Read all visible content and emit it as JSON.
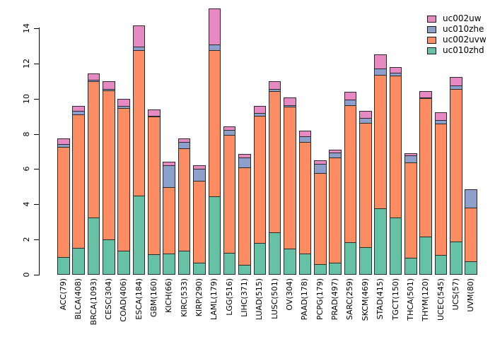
{
  "chart_data": {
    "type": "bar",
    "stacked": true,
    "title": "",
    "xlabel": "",
    "ylabel": "",
    "ylim": [
      0,
      14
    ],
    "yticks": [
      0,
      2,
      4,
      6,
      8,
      10,
      12,
      14
    ],
    "grid": false,
    "legend_position": "top-right",
    "categories": [
      "ACC(79)",
      "BLCA(408)",
      "BRCA(1093)",
      "CESC(304)",
      "COAD(406)",
      "ESCA(184)",
      "GBM(160)",
      "KICH(66)",
      "KIRC(533)",
      "KIRP(290)",
      "LAML(179)",
      "LGG(516)",
      "LIHC(371)",
      "LUAD(515)",
      "LUSC(501)",
      "OV(304)",
      "PAAD(178)",
      "PCPG(179)",
      "PRAD(497)",
      "SARC(259)",
      "SKCM(469)",
      "STAD(415)",
      "TGCT(150)",
      "THCA(501)",
      "THYM(120)",
      "UCEC(545)",
      "UCS(57)",
      "UVM(80)"
    ],
    "series": [
      {
        "name": "uc010zhd",
        "color": "#66c2a5",
        "stack_order": "bottom",
        "values": [
          1.05,
          1.55,
          3.3,
          2.05,
          1.4,
          4.55,
          1.22,
          1.25,
          1.4,
          0.72,
          4.48,
          1.3,
          0.6,
          1.86,
          2.44,
          1.53,
          1.26,
          0.66,
          0.72,
          1.9,
          1.62,
          3.8,
          3.27,
          0.99,
          2.2,
          1.15,
          1.93,
          0.79
        ]
      },
      {
        "name": "uc002uvw",
        "color": "#fc8d62",
        "stack_order": "second",
        "values": [
          6.25,
          7.6,
          7.72,
          8.45,
          8.1,
          8.25,
          7.8,
          3.75,
          5.81,
          4.65,
          8.3,
          6.7,
          5.55,
          7.2,
          8.04,
          8.06,
          6.34,
          5.16,
          5.97,
          7.78,
          7.06,
          7.6,
          8.1,
          5.43,
          7.85,
          7.46,
          8.65,
          3.08
        ]
      },
      {
        "name": "uc010zhe",
        "color": "#8da0cb",
        "stack_order": "third",
        "values": [
          0.15,
          0.2,
          0.08,
          0.1,
          0.12,
          0.18,
          0.06,
          1.27,
          0.37,
          0.67,
          0.33,
          0.25,
          0.54,
          0.18,
          0.1,
          0.08,
          0.3,
          0.51,
          0.27,
          0.32,
          0.27,
          0.36,
          0.13,
          0.4,
          0.05,
          0.23,
          0.2,
          0.98
        ]
      },
      {
        "name": "uc002uw",
        "color": "#e78ac3",
        "stack_order": "top",
        "values": [
          0.3,
          0.22,
          0.32,
          0.4,
          0.36,
          1.17,
          0.3,
          0.16,
          0.17,
          0.16,
          2.0,
          0.17,
          0.18,
          0.33,
          0.4,
          0.4,
          0.27,
          0.16,
          0.16,
          0.4,
          0.37,
          0.75,
          0.3,
          0.08,
          0.32,
          0.4,
          0.47,
          0.0
        ]
      }
    ],
    "legend": [
      {
        "label": "uc002uw",
        "color": "#e78ac3"
      },
      {
        "label": "uc010zhe",
        "color": "#8da0cb"
      },
      {
        "label": "uc002uvw",
        "color": "#fc8d62"
      },
      {
        "label": "uc010zhd",
        "color": "#66c2a5"
      }
    ],
    "bar_border_color": "#2b2b2b",
    "axis_color": "#000000"
  }
}
